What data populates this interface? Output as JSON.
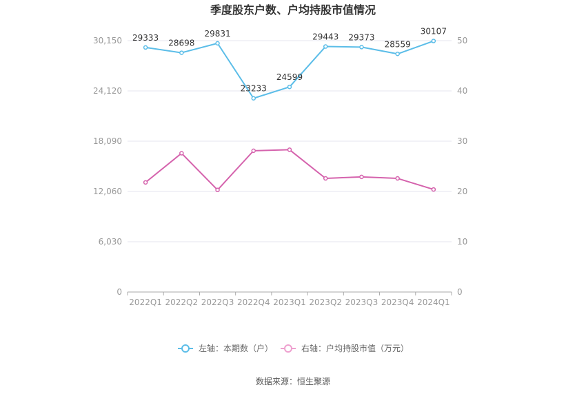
{
  "chart_data": {
    "type": "line",
    "title": "季度股东户数、户均持股市值情况",
    "categories": [
      "2022Q1",
      "2022Q2",
      "2022Q3",
      "2022Q4",
      "2023Q1",
      "2023Q2",
      "2023Q3",
      "2023Q4",
      "2024Q1"
    ],
    "left_axis": {
      "ticks": [
        "0",
        "6,030",
        "12,060",
        "18,090",
        "24,120",
        "30,150"
      ],
      "ylim": [
        0,
        30150
      ]
    },
    "right_axis": {
      "ticks": [
        "0",
        "10",
        "20",
        "30",
        "40",
        "50"
      ],
      "ylim": [
        0,
        50
      ]
    },
    "series": [
      {
        "name": "左轴：本期数（户）",
        "axis": "left",
        "color": "#5bbde8",
        "values": [
          29333,
          28698,
          29831,
          23233,
          24599,
          29443,
          29373,
          28559,
          30107
        ],
        "labels": [
          "29333",
          "28698",
          "29831",
          "23233",
          "24599",
          "29443",
          "29373",
          "28559",
          "30107"
        ]
      },
      {
        "name": "右轴：户均持股市值（万元）",
        "axis": "right",
        "color": "#d563ad",
        "values": [
          21.8,
          27.6,
          20.3,
          28.1,
          28.3,
          22.6,
          22.9,
          22.6,
          20.4
        ]
      }
    ],
    "grid": true,
    "legend_position": "bottom"
  },
  "source": "数据来源：恒生聚源"
}
